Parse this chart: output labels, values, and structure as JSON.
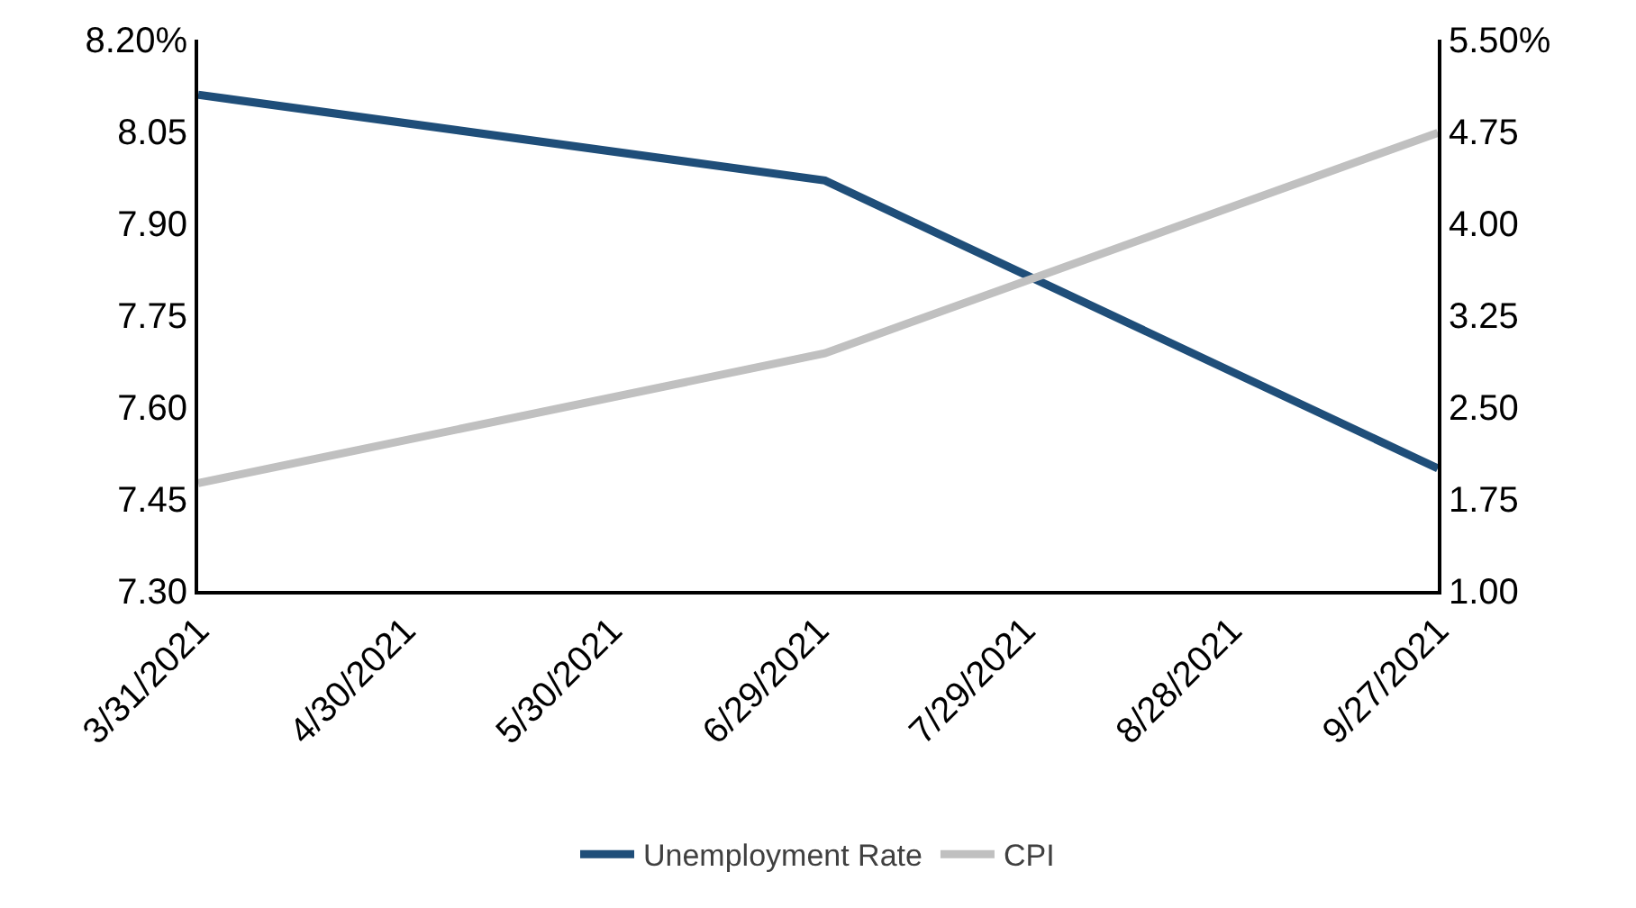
{
  "chart_data": {
    "type": "line",
    "x": [
      "2021-03-31",
      "2021-06-30",
      "2021-09-27"
    ],
    "series": [
      {
        "name": "Unemployment Rate",
        "color": "#1f4e79",
        "values": [
          8.11,
          7.97,
          7.5
        ]
      },
      {
        "name": "CPI",
        "color": "#c0c0c0",
        "values": [
          1.88,
          2.94,
          4.74
        ],
        "axis": "y2"
      }
    ],
    "xlim": [
      "2021-03-31",
      "2021-09-27"
    ],
    "xticks": [
      {
        "value": "2021-03-31",
        "label": "3/31/2021"
      },
      {
        "value": "2021-04-30",
        "label": "4/30/2021"
      },
      {
        "value": "2021-05-30",
        "label": "5/30/2021"
      },
      {
        "value": "2021-06-29",
        "label": "6/29/2021"
      },
      {
        "value": "2021-07-29",
        "label": "7/29/2021"
      },
      {
        "value": "2021-08-28",
        "label": "8/28/2021"
      },
      {
        "value": "2021-09-27",
        "label": "9/27/2021"
      }
    ],
    "ylim": [
      7.3,
      8.2
    ],
    "yticks": [
      {
        "value": 7.3,
        "label": "7.30"
      },
      {
        "value": 7.45,
        "label": "7.45"
      },
      {
        "value": 7.6,
        "label": "7.60"
      },
      7.75,
      {
        "value": 7.9,
        "label": "7.90"
      },
      {
        "value": 8.05,
        "label": "8.05"
      },
      {
        "value": 8.2,
        "label": "8.20%"
      }
    ],
    "y2lim": [
      1,
      5.5
    ],
    "y2ticks": [
      {
        "value": 1,
        "label": "1.00"
      },
      1.75,
      {
        "value": 2.5,
        "label": "2.50"
      },
      3.25,
      {
        "value": 4,
        "label": "4.00"
      },
      4.75,
      {
        "value": 5.5,
        "label": "5.50%"
      }
    ],
    "legend": "bottom",
    "marker": "none",
    "line_style": "solid"
  }
}
